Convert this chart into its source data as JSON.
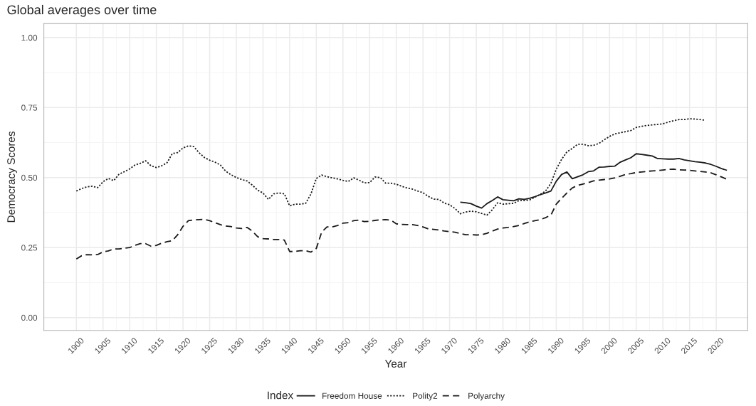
{
  "chart_data": {
    "type": "line",
    "title": "Global averages over time",
    "xlabel": "Year",
    "ylabel": "Democracy Scores",
    "legend_title": "Index",
    "legend": "bottom",
    "grid": true,
    "xlim": [
      1893.9,
      2025.9
    ],
    "xticks": [
      1900,
      1905,
      1910,
      1915,
      1920,
      1925,
      1930,
      1935,
      1940,
      1945,
      1950,
      1955,
      1960,
      1965,
      1970,
      1975,
      1980,
      1985,
      1990,
      1995,
      2000,
      2005,
      2010,
      2015,
      2020
    ],
    "ylim": [
      -0.046,
      1.05
    ],
    "yticks": [
      {
        "value": 0,
        "label": "0.00"
      },
      {
        "value": 0.25,
        "label": "0.25"
      },
      {
        "value": 0.5,
        "label": "0.50"
      },
      {
        "value": 0.75,
        "label": "0.75"
      },
      {
        "value": 1,
        "label": "1.00"
      }
    ],
    "series": [
      {
        "name": "Freedom House",
        "color": "#1a1a1a",
        "line_style": "solid",
        "x": [
          1972,
          1973,
          1974,
          1975,
          1976,
          1977,
          1978,
          1979,
          1980,
          1981,
          1982,
          1983,
          1984,
          1985,
          1986,
          1987,
          1988,
          1989,
          1990,
          1991,
          1992,
          1993,
          1994,
          1995,
          1996,
          1997,
          1998,
          1999,
          2000,
          2001,
          2002,
          2003,
          2004,
          2005,
          2006,
          2007,
          2008,
          2009,
          2010,
          2011,
          2012,
          2013,
          2014,
          2015,
          2016,
          2017,
          2018,
          2019,
          2020,
          2021,
          2022
        ],
        "values": [
          0.412,
          0.41,
          0.407,
          0.398,
          0.391,
          0.407,
          0.418,
          0.431,
          0.421,
          0.419,
          0.417,
          0.424,
          0.422,
          0.426,
          0.432,
          0.439,
          0.445,
          0.452,
          0.487,
          0.511,
          0.52,
          0.496,
          0.503,
          0.51,
          0.521,
          0.524,
          0.537,
          0.538,
          0.54,
          0.541,
          0.555,
          0.563,
          0.571,
          0.585,
          0.583,
          0.58,
          0.577,
          0.568,
          0.567,
          0.566,
          0.566,
          0.568,
          0.563,
          0.56,
          0.557,
          0.555,
          0.552,
          0.547,
          0.54,
          0.532,
          0.526
        ]
      },
      {
        "name": "Polity2",
        "color": "#1a1a1a",
        "line_style": "dotted",
        "x": [
          1900,
          1901,
          1902,
          1903,
          1904,
          1905,
          1906,
          1907,
          1908,
          1909,
          1910,
          1911,
          1912,
          1913,
          1914,
          1915,
          1916,
          1917,
          1918,
          1919,
          1920,
          1921,
          1922,
          1923,
          1924,
          1925,
          1926,
          1927,
          1928,
          1929,
          1930,
          1931,
          1932,
          1933,
          1934,
          1935,
          1936,
          1937,
          1938,
          1939,
          1940,
          1941,
          1942,
          1943,
          1944,
          1945,
          1946,
          1947,
          1948,
          1949,
          1950,
          1951,
          1952,
          1953,
          1954,
          1955,
          1956,
          1957,
          1958,
          1959,
          1960,
          1961,
          1962,
          1963,
          1964,
          1965,
          1966,
          1967,
          1968,
          1969,
          1970,
          1971,
          1972,
          1973,
          1974,
          1975,
          1976,
          1977,
          1978,
          1979,
          1980,
          1981,
          1982,
          1983,
          1984,
          1985,
          1986,
          1987,
          1988,
          1989,
          1990,
          1991,
          1992,
          1993,
          1994,
          1995,
          1996,
          1997,
          1998,
          1999,
          2000,
          2001,
          2002,
          2003,
          2004,
          2005,
          2006,
          2007,
          2008,
          2009,
          2010,
          2011,
          2012,
          2013,
          2014,
          2015,
          2016,
          2017,
          2018
        ],
        "values": [
          0.452,
          0.461,
          0.467,
          0.469,
          0.464,
          0.485,
          0.497,
          0.489,
          0.512,
          0.521,
          0.531,
          0.545,
          0.551,
          0.56,
          0.542,
          0.536,
          0.542,
          0.553,
          0.586,
          0.589,
          0.606,
          0.613,
          0.611,
          0.589,
          0.572,
          0.562,
          0.555,
          0.545,
          0.523,
          0.51,
          0.5,
          0.493,
          0.488,
          0.473,
          0.455,
          0.445,
          0.422,
          0.442,
          0.445,
          0.442,
          0.399,
          0.405,
          0.405,
          0.408,
          0.442,
          0.497,
          0.509,
          0.503,
          0.499,
          0.495,
          0.49,
          0.486,
          0.499,
          0.491,
          0.481,
          0.482,
          0.502,
          0.5,
          0.48,
          0.48,
          0.476,
          0.469,
          0.463,
          0.459,
          0.452,
          0.446,
          0.433,
          0.423,
          0.422,
          0.409,
          0.403,
          0.39,
          0.371,
          0.377,
          0.38,
          0.378,
          0.372,
          0.366,
          0.385,
          0.41,
          0.405,
          0.407,
          0.408,
          0.418,
          0.418,
          0.42,
          0.43,
          0.44,
          0.452,
          0.48,
          0.53,
          0.565,
          0.592,
          0.604,
          0.619,
          0.619,
          0.614,
          0.615,
          0.622,
          0.635,
          0.647,
          0.656,
          0.66,
          0.664,
          0.668,
          0.679,
          0.683,
          0.686,
          0.688,
          0.69,
          0.692,
          0.698,
          0.703,
          0.707,
          0.707,
          0.71,
          0.709,
          0.707,
          0.705
        ]
      },
      {
        "name": "Polyarchy",
        "color": "#1a1a1a",
        "line_style": "dashed",
        "x": [
          1900,
          1901,
          1902,
          1903,
          1904,
          1905,
          1906,
          1907,
          1908,
          1909,
          1910,
          1911,
          1912,
          1913,
          1914,
          1915,
          1916,
          1917,
          1918,
          1919,
          1920,
          1921,
          1922,
          1923,
          1924,
          1925,
          1926,
          1927,
          1928,
          1929,
          1930,
          1931,
          1932,
          1933,
          1934,
          1935,
          1936,
          1937,
          1938,
          1939,
          1940,
          1941,
          1942,
          1943,
          1944,
          1945,
          1946,
          1947,
          1948,
          1949,
          1950,
          1951,
          1952,
          1953,
          1954,
          1955,
          1956,
          1957,
          1958,
          1959,
          1960,
          1961,
          1962,
          1963,
          1964,
          1965,
          1966,
          1967,
          1968,
          1969,
          1970,
          1971,
          1972,
          1973,
          1974,
          1975,
          1976,
          1977,
          1978,
          1979,
          1980,
          1981,
          1982,
          1983,
          1984,
          1985,
          1986,
          1987,
          1988,
          1989,
          1990,
          1991,
          1992,
          1993,
          1994,
          1995,
          1996,
          1997,
          1998,
          1999,
          2000,
          2001,
          2002,
          2003,
          2004,
          2005,
          2006,
          2007,
          2008,
          2009,
          2010,
          2011,
          2012,
          2013,
          2014,
          2015,
          2016,
          2017,
          2018,
          2019,
          2020,
          2021,
          2022
        ],
        "values": [
          0.209,
          0.221,
          0.225,
          0.224,
          0.225,
          0.235,
          0.238,
          0.245,
          0.245,
          0.248,
          0.25,
          0.258,
          0.264,
          0.264,
          0.255,
          0.258,
          0.266,
          0.271,
          0.275,
          0.296,
          0.326,
          0.346,
          0.349,
          0.35,
          0.351,
          0.346,
          0.339,
          0.332,
          0.327,
          0.325,
          0.32,
          0.318,
          0.322,
          0.309,
          0.289,
          0.282,
          0.281,
          0.279,
          0.279,
          0.277,
          0.236,
          0.236,
          0.239,
          0.239,
          0.234,
          0.247,
          0.305,
          0.324,
          0.324,
          0.329,
          0.337,
          0.339,
          0.346,
          0.348,
          0.343,
          0.344,
          0.347,
          0.349,
          0.35,
          0.348,
          0.335,
          0.333,
          0.332,
          0.332,
          0.329,
          0.324,
          0.317,
          0.315,
          0.313,
          0.309,
          0.307,
          0.305,
          0.3,
          0.296,
          0.296,
          0.295,
          0.296,
          0.301,
          0.309,
          0.316,
          0.32,
          0.322,
          0.325,
          0.329,
          0.336,
          0.342,
          0.346,
          0.35,
          0.357,
          0.366,
          0.405,
          0.426,
          0.445,
          0.463,
          0.472,
          0.477,
          0.482,
          0.488,
          0.491,
          0.493,
          0.495,
          0.499,
          0.505,
          0.511,
          0.514,
          0.518,
          0.52,
          0.522,
          0.524,
          0.525,
          0.527,
          0.529,
          0.53,
          0.528,
          0.527,
          0.526,
          0.524,
          0.522,
          0.52,
          0.517,
          0.51,
          0.502,
          0.494
        ]
      }
    ]
  }
}
